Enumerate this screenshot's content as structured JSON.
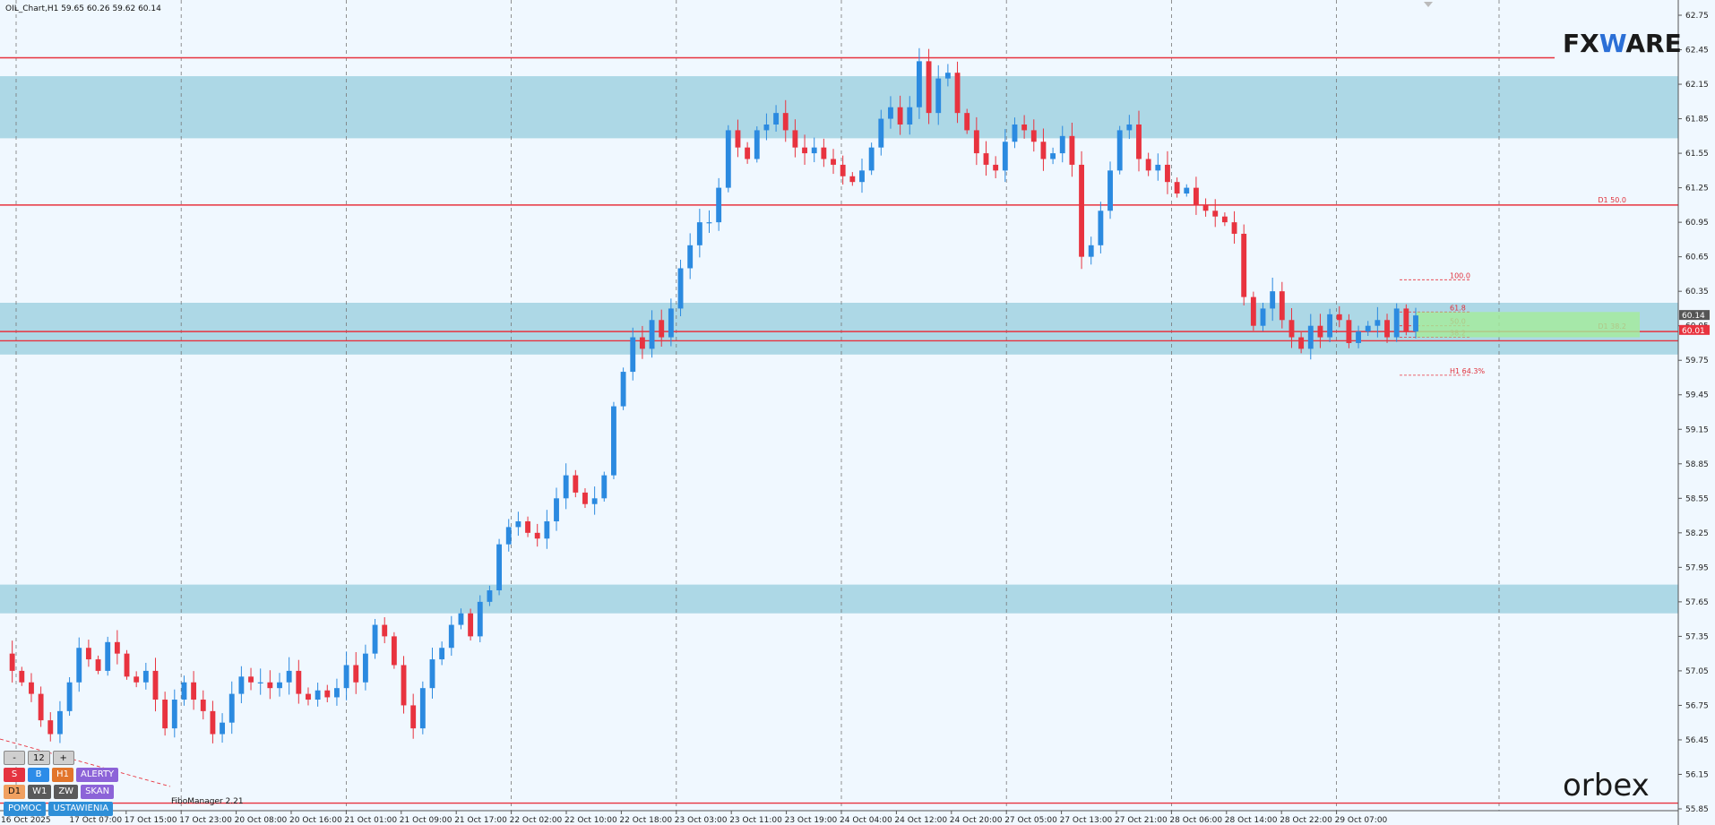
{
  "title_bar": "OIL_Chart,H1  59.65 60.26 59.62 60.14",
  "colors": {
    "bull": "#2b8ae0",
    "bear": "#e8333f",
    "zone": "#add8e6",
    "level": "#e8333f",
    "grid": "#777777",
    "bg": "#f0f8ff",
    "fib_zone": "#a4ec9a"
  },
  "chart_data": {
    "type": "candlestick",
    "symbol": "OIL",
    "timeframe": "H1",
    "ohlc_header": {
      "open": 59.65,
      "high": 60.26,
      "low": 59.62,
      "close": 60.14
    },
    "ylim": [
      55.85,
      62.8
    ],
    "y_ticks": [
      "62.75",
      "62.45",
      "62.15",
      "61.85",
      "61.55",
      "61.25",
      "60.95",
      "60.65",
      "60.35",
      "60.05",
      "59.75",
      "59.45",
      "59.15",
      "58.85",
      "58.55",
      "58.25",
      "57.95",
      "57.65",
      "57.35",
      "57.05",
      "56.75",
      "56.45",
      "56.15",
      "55.85"
    ],
    "x_ticks": [
      "16 Oct 2025",
      "17 Oct 07:00",
      "17 Oct 15:00",
      "17 Oct 23:00",
      "20 Oct 08:00",
      "20 Oct 16:00",
      "21 Oct 01:00",
      "21 Oct 09:00",
      "21 Oct 17:00",
      "22 Oct 02:00",
      "22 Oct 10:00",
      "22 Oct 18:00",
      "23 Oct 03:00",
      "23 Oct 11:00",
      "23 Oct 19:00",
      "24 Oct 04:00",
      "24 Oct 12:00",
      "24 Oct 20:00",
      "27 Oct 05:00",
      "27 Oct 13:00",
      "27 Oct 21:00",
      "28 Oct 06:00",
      "28 Oct 14:00",
      "28 Oct 22:00",
      "29 Oct 07:00"
    ],
    "price_path": [
      57.2,
      57.05,
      56.95,
      56.85,
      56.62,
      56.5,
      56.7,
      56.95,
      57.25,
      57.15,
      57.05,
      57.3,
      57.2,
      57.0,
      56.95,
      57.05,
      56.8,
      56.55,
      56.8,
      56.95,
      56.8,
      56.7,
      56.5,
      56.6,
      56.85,
      57.0,
      56.95,
      56.95,
      56.9,
      56.95,
      57.05,
      56.85,
      56.8,
      56.88,
      56.82,
      56.9,
      57.1,
      56.95,
      57.2,
      57.45,
      57.35,
      57.1,
      56.75,
      56.55,
      56.9,
      57.15,
      57.25,
      57.45,
      57.55,
      57.35,
      57.65,
      57.75,
      58.15,
      58.3,
      58.35,
      58.25,
      58.2,
      58.35,
      58.55,
      58.75,
      58.6,
      58.5,
      58.55,
      58.75,
      59.35,
      59.65,
      59.95,
      59.85,
      60.1,
      59.95,
      60.2,
      60.55,
      60.75,
      60.95,
      60.95,
      61.25,
      61.75,
      61.6,
      61.5,
      61.75,
      61.8,
      61.9,
      61.75,
      61.6,
      61.55,
      61.6,
      61.5,
      61.45,
      61.35,
      61.3,
      61.4,
      61.6,
      61.85,
      61.95,
      61.8,
      61.95,
      62.35,
      61.9,
      62.2,
      62.25,
      61.9,
      61.75,
      61.55,
      61.45,
      61.4,
      61.65,
      61.8,
      61.75,
      61.65,
      61.5,
      61.55,
      61.7,
      61.45,
      60.65,
      60.75,
      61.05,
      61.4,
      61.75,
      61.8,
      61.5,
      61.4,
      61.45,
      61.3,
      61.2,
      61.25,
      61.1,
      61.05,
      61.0,
      60.95,
      60.85,
      60.3,
      60.05,
      60.2,
      60.35,
      60.1,
      59.95,
      59.85,
      60.05,
      59.95,
      60.15,
      60.1,
      59.9,
      60.0,
      60.05,
      60.1,
      59.95,
      60.2,
      60.0,
      60.14
    ],
    "horizontal_levels": [
      {
        "price": 62.38,
        "label": ""
      },
      {
        "price": 61.1,
        "label": "D1 50.0"
      },
      {
        "price": 60.0,
        "label": "D1 38.2"
      },
      {
        "price": 59.92,
        "label": ""
      },
      {
        "price": 55.9,
        "label": ""
      }
    ],
    "supply_demand_zones": [
      {
        "from": 61.68,
        "to": 62.22
      },
      {
        "from": 59.8,
        "to": 60.25
      },
      {
        "from": 57.55,
        "to": 57.8
      }
    ],
    "fib_levels": [
      {
        "price": 60.45,
        "label": "100.0"
      },
      {
        "price": 60.17,
        "label": "61.8"
      },
      {
        "price": 60.05,
        "label": "50.0"
      },
      {
        "price": 59.95,
        "label": "38.2"
      },
      {
        "price": 59.62,
        "label": "H1 64.3%"
      }
    ],
    "price_labels": [
      {
        "price": 60.14,
        "text": "60.14",
        "color": "#555555"
      },
      {
        "price": 60.01,
        "text": "60.01",
        "color": "#e8333f"
      }
    ]
  },
  "brand_top": {
    "left": "FX",
    "mid": "W",
    "right": "ARE"
  },
  "brand_bottom": "orbex",
  "filomanager_label": "FiboManager 2.21",
  "panel": {
    "row1": [
      "-",
      "12",
      "+",
      "ALERTY"
    ],
    "row2": [
      "S",
      "B",
      "H1",
      "ALERTY"
    ],
    "row3": [
      "D1",
      "W1",
      "ZW",
      "SKAN"
    ],
    "row4": [
      "POMOC",
      "USTAWIENIA"
    ]
  }
}
